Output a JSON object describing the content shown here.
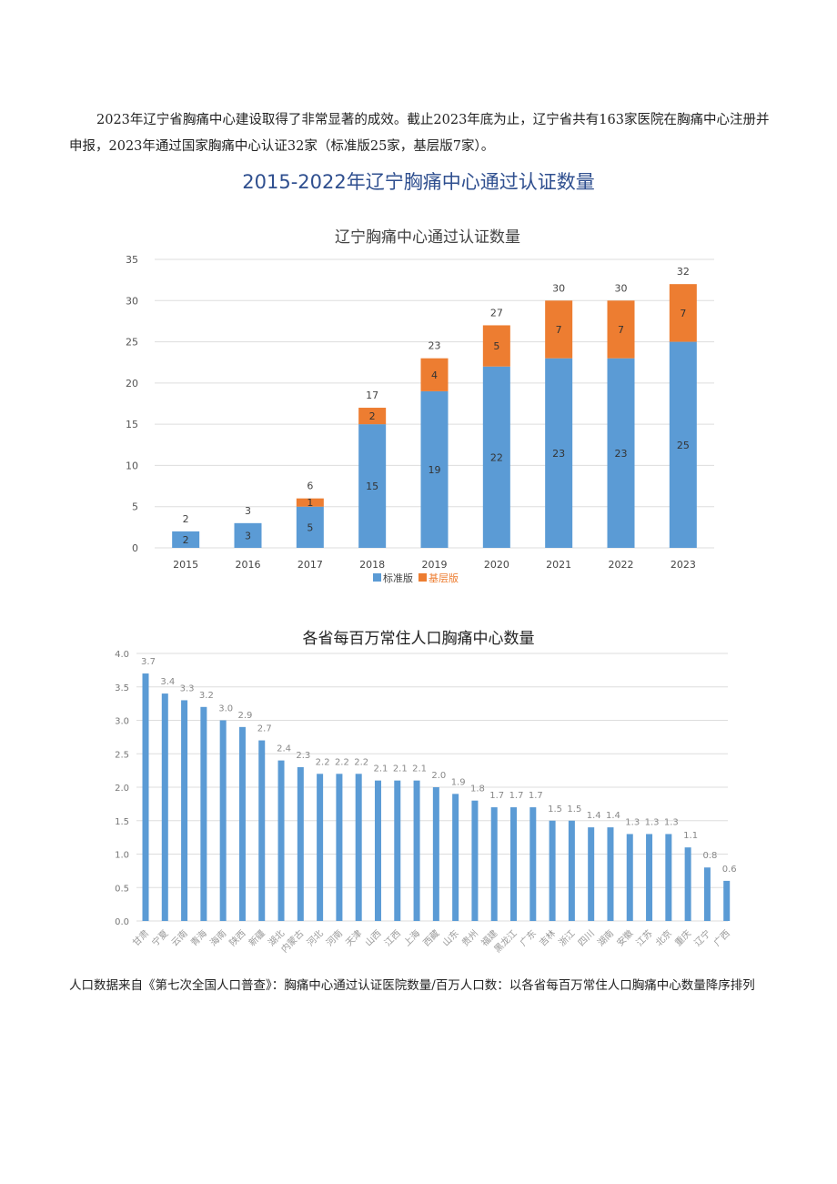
{
  "paragraph": "2023年辽宁省胸痛中心建设取得了非常显著的成效。截止2023年底为止，辽宁省共有163家医院在胸痛中心注册并申报，2023年通过国家胸痛中心认证32家（标准版25家，基层版7家）。",
  "heading": "2015-2022年辽宁胸痛中心通过认证数量",
  "note": "人口数据来自《第七次全国人口普查》：胸痛中心通过认证医院数量/百万人口数：以各省每百万常住人口胸痛中心数量降序排列",
  "chart_data": [
    {
      "type": "bar",
      "stacked": true,
      "title": "辽宁胸痛中心通过认证数量",
      "categories": [
        "2015",
        "2016",
        "2017",
        "2018",
        "2019",
        "2020",
        "2021",
        "2022",
        "2023"
      ],
      "series": [
        {
          "name": "标准版",
          "color": "#5b9bd5",
          "values": [
            2,
            3,
            5,
            15,
            19,
            22,
            23,
            23,
            25
          ]
        },
        {
          "name": "基层版",
          "color": "#ed7d31",
          "values": [
            0,
            0,
            1,
            2,
            4,
            5,
            7,
            7,
            7
          ]
        }
      ],
      "totals": [
        2,
        3,
        6,
        17,
        23,
        27,
        30,
        30,
        32
      ],
      "ylim": [
        0,
        35
      ],
      "yticks": [
        0,
        5,
        10,
        15,
        20,
        25,
        30,
        35
      ],
      "grid": true,
      "legend": "bottom"
    },
    {
      "type": "bar",
      "title": "各省每百万常住人口胸痛中心数量",
      "categories": [
        "甘肃",
        "宁夏",
        "云南",
        "青海",
        "海南",
        "陕西",
        "新疆",
        "湖北",
        "内蒙古",
        "河北",
        "河南",
        "天津",
        "山西",
        "江西",
        "上海",
        "西藏",
        "山东",
        "贵州",
        "福建",
        "黑龙江",
        "广东",
        "吉林",
        "浙江",
        "四川",
        "湖南",
        "安徽",
        "江苏",
        "北京",
        "重庆",
        "辽宁",
        "广西"
      ],
      "values": [
        3.7,
        3.4,
        3.3,
        3.2,
        3.0,
        2.9,
        2.7,
        2.4,
        2.3,
        2.2,
        2.2,
        2.2,
        2.1,
        2.1,
        2.1,
        2.0,
        1.9,
        1.8,
        1.7,
        1.7,
        1.7,
        1.5,
        1.5,
        1.4,
        1.4,
        1.3,
        1.3,
        1.3,
        1.1,
        0.8,
        0.6
      ],
      "color": "#5b9bd5",
      "ylim": [
        0,
        4.0
      ],
      "yticks": [
        "0.0",
        "0.5",
        "1.0",
        "1.5",
        "2.0",
        "2.5",
        "3.0",
        "3.5",
        "4.0"
      ],
      "grid": true
    }
  ]
}
